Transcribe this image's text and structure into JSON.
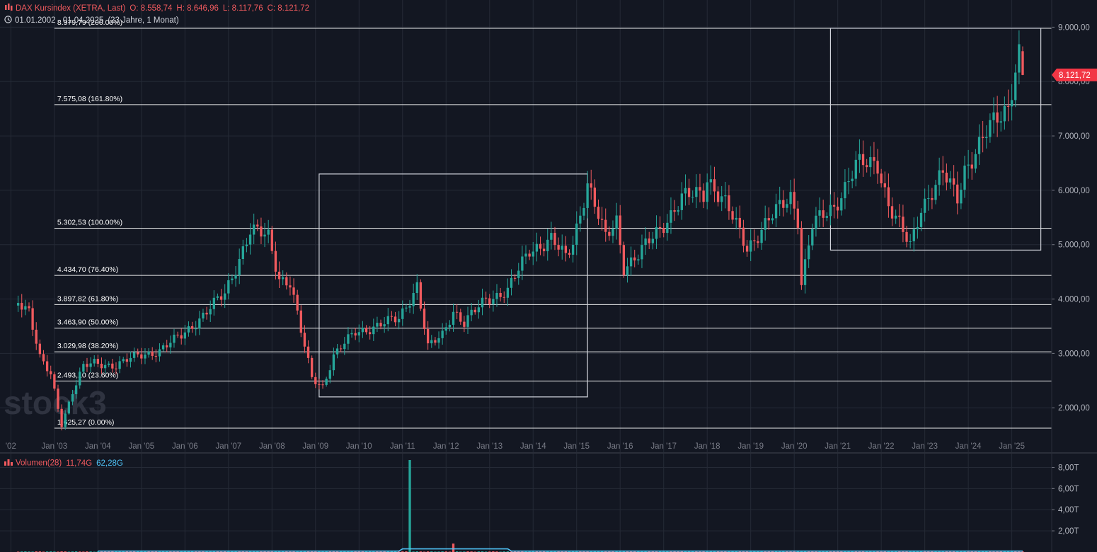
{
  "header": {
    "instrument": "DAX Kursindex (XETRA, Last)",
    "open": "O: 8.558,74",
    "high": "H: 8.646,96",
    "low": "L: 8.117,76",
    "close": "C: 8.121,72",
    "range": "01.01.2002 - 01.04.2025",
    "range_span": "(23 Jahre, 1 Monat)"
  },
  "watermark": "stock3",
  "price_axis": {
    "ticks": [
      {
        "value": 9000,
        "label": "9.000,00"
      },
      {
        "value": 8000,
        "label": "8.000,00"
      },
      {
        "value": 7000,
        "label": "7.000,00"
      },
      {
        "value": 6000,
        "label": "6.000,00"
      },
      {
        "value": 5000,
        "label": "5.000,00"
      },
      {
        "value": 4000,
        "label": "4.000,00"
      },
      {
        "value": 3000,
        "label": "3.000,00"
      },
      {
        "value": 2000,
        "label": "2.000,00"
      }
    ],
    "last_price_label": "8.121,72",
    "last_price_color": "#f23645"
  },
  "time_axis": {
    "labels": [
      "'02",
      "Jan '03",
      "Jan '04",
      "Jan '05",
      "Jan '06",
      "Jan '07",
      "Jan '08",
      "Jan '09",
      "Jan '10",
      "Jan '11",
      "Jan '12",
      "Jan '13",
      "Jan '14",
      "Jan '15",
      "Jan '16",
      "Jan '17",
      "Jan '18",
      "Jan '19",
      "Jan '20",
      "Jan '21",
      "Jan '22",
      "Jan '23",
      "Jan '24",
      "Jan '25"
    ]
  },
  "fibonacci": [
    {
      "price": 8979.79,
      "label": "8.979,79 (200.00%)"
    },
    {
      "price": 7575.08,
      "label": "7.575,08 (161.80%)"
    },
    {
      "price": 5302.53,
      "label": "5.302,53 (100.00%)"
    },
    {
      "price": 4434.7,
      "label": "4.434,70 (76.40%)"
    },
    {
      "price": 3897.82,
      "label": "3.897,82 (61.80%)"
    },
    {
      "price": 3463.9,
      "label": "3.463,90 (50.00%)"
    },
    {
      "price": 3029.98,
      "label": "3.029,98 (38.20%)"
    },
    {
      "price": 2493.1,
      "label": "2.493,10 (23.60%)"
    },
    {
      "price": 1625.27,
      "label": "1.625,27 (0.00%)"
    }
  ],
  "volume_panel": {
    "title": "Volumen(28)",
    "value1": "11,74G",
    "value2": "62,28G",
    "ticks": [
      {
        "value": 8,
        "label": "8,00T"
      },
      {
        "value": 6,
        "label": "6,00T"
      },
      {
        "value": 4,
        "label": "4,00T"
      },
      {
        "value": 2,
        "label": "2,00T"
      }
    ],
    "max_value_t": 8.7
  },
  "colors": {
    "up": "#26a69a",
    "down": "#f05a5e",
    "grid": "#252a36",
    "fib_line": "#ffffff",
    "volume_ma": "#4fc3f7"
  },
  "chart_data": {
    "type": "candlestick",
    "title": "DAX Kursindex (XETRA, Last)",
    "interval": "monthly",
    "ylim": [
      1300,
      9500
    ],
    "xlim": [
      "2001-10",
      "2025-12"
    ],
    "anchors": [
      [
        "2002-03",
        4000
      ],
      [
        "2002-06",
        3800
      ],
      [
        "2002-09",
        2900
      ],
      [
        "2002-12",
        2600
      ],
      [
        "2003-03",
        1700
      ],
      [
        "2003-06",
        2300
      ],
      [
        "2003-09",
        2750
      ],
      [
        "2003-12",
        2820
      ],
      [
        "2004-06",
        2780
      ],
      [
        "2004-12",
        2960
      ],
      [
        "2005-06",
        3050
      ],
      [
        "2005-12",
        3330
      ],
      [
        "2006-06",
        3700
      ],
      [
        "2006-12",
        4100
      ],
      [
        "2007-07",
        5250
      ],
      [
        "2007-12",
        5150
      ],
      [
        "2008-03",
        4400
      ],
      [
        "2008-06",
        4300
      ],
      [
        "2008-09",
        3400
      ],
      [
        "2008-12",
        2550
      ],
      [
        "2009-03",
        2400
      ],
      [
        "2009-06",
        2950
      ],
      [
        "2009-12",
        3400
      ],
      [
        "2010-06",
        3500
      ],
      [
        "2010-12",
        3650
      ],
      [
        "2011-05",
        4250
      ],
      [
        "2011-08",
        3100
      ],
      [
        "2011-12",
        3350
      ],
      [
        "2012-03",
        3800
      ],
      [
        "2012-06",
        3550
      ],
      [
        "2012-12",
        4000
      ],
      [
        "2013-06",
        4150
      ],
      [
        "2013-12",
        4900
      ],
      [
        "2014-06",
        5100
      ],
      [
        "2014-10",
        4750
      ],
      [
        "2014-12",
        5050
      ],
      [
        "2015-04",
        6150
      ],
      [
        "2015-09",
        5100
      ],
      [
        "2015-12",
        5450
      ],
      [
        "2016-02",
        4600
      ],
      [
        "2016-06",
        4800
      ],
      [
        "2016-12",
        5300
      ],
      [
        "2017-06",
        5850
      ],
      [
        "2017-12",
        5950
      ],
      [
        "2018-01",
        6250
      ],
      [
        "2018-06",
        5750
      ],
      [
        "2018-12",
        4950
      ],
      [
        "2019-06",
        5450
      ],
      [
        "2019-12",
        5900
      ],
      [
        "2020-02",
        5500
      ],
      [
        "2020-03",
        4300
      ],
      [
        "2020-06",
        5350
      ],
      [
        "2020-12",
        5700
      ],
      [
        "2021-06",
        6450
      ],
      [
        "2021-12",
        6500
      ],
      [
        "2022-03",
        5750
      ],
      [
        "2022-09",
        4950
      ],
      [
        "2022-12",
        5700
      ],
      [
        "2023-06",
        6300
      ],
      [
        "2023-10",
        5850
      ],
      [
        "2023-12",
        6400
      ],
      [
        "2024-06",
        7050
      ],
      [
        "2024-12",
        7550
      ],
      [
        "2025-02",
        8300
      ],
      [
        "2025-03",
        8550
      ],
      [
        "2025-04",
        8121.72
      ]
    ],
    "last_candle": {
      "date": "2025-04",
      "open": 8558.74,
      "high": 8646.96,
      "low": 8117.76,
      "close": 8121.72
    },
    "boxes": [
      {
        "from": "2009-02",
        "to": "2015-04",
        "low": 2200,
        "high": 6300
      },
      {
        "from": "2020-11",
        "to": "2025-09",
        "low": 4900,
        "high": 8979.79
      }
    ]
  }
}
